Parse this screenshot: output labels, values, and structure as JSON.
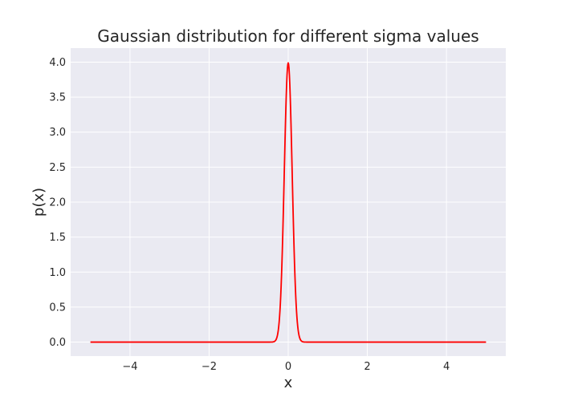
{
  "chart_data": {
    "type": "line",
    "title": "Gaussian distribution for different sigma values",
    "xlabel": "x",
    "ylabel": "p(x)",
    "xlim": [
      -5.5,
      5.5
    ],
    "ylim": [
      -0.2,
      4.2
    ],
    "x_ticks": [
      -4,
      -2,
      0,
      2,
      4
    ],
    "x_tick_labels": [
      "−4",
      "−2",
      "0",
      "2",
      "4"
    ],
    "y_ticks": [
      0.0,
      0.5,
      1.0,
      1.5,
      2.0,
      2.5,
      3.0,
      3.5,
      4.0
    ],
    "y_tick_labels": [
      "0.0",
      "0.5",
      "1.0",
      "1.5",
      "2.0",
      "2.5",
      "3.0",
      "3.5",
      "4.0"
    ],
    "grid": true,
    "background_color": "#EAEAF2",
    "series": [
      {
        "color": "#FF0000",
        "distribution": "gaussian",
        "mu": 0,
        "sigma": 0.1,
        "x_range": [
          -5,
          5
        ],
        "peak": 3.99
      }
    ]
  }
}
